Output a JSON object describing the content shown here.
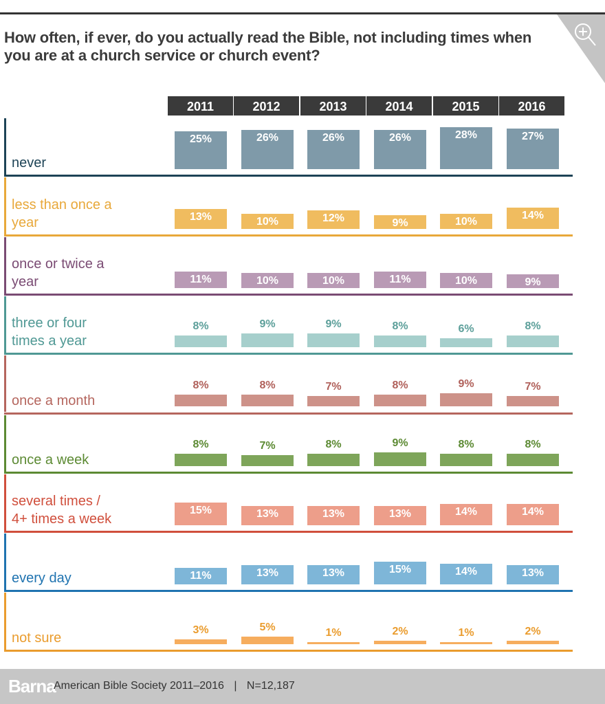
{
  "header": {
    "title": "How often, if ever, do you actually read the Bible, not including times when you are at a church service or church event?",
    "zoom_icon": "zoom-in-magnifier-icon"
  },
  "footer": {
    "brand": "Barna",
    "source": "American Bible Society 2011–2016",
    "separator": "|",
    "sample": "N=12,187"
  },
  "chart_data": {
    "type": "bar",
    "title": "How often, if ever, do you actually read the Bible, not including times when you are at a church service or church event?",
    "categories": [
      "2011",
      "2012",
      "2013",
      "2014",
      "2015",
      "2016"
    ],
    "xlabel": "",
    "ylabel": "",
    "unit": "%",
    "series": [
      {
        "name": "never",
        "label_lines": [
          "never"
        ],
        "values": [
          25,
          26,
          26,
          26,
          28,
          27
        ],
        "line_color": "#1d4356",
        "bar_color": "#7f9aa9",
        "value_color": "#ffffff",
        "value_inside": true
      },
      {
        "name": "less than once a year",
        "label_lines": [
          "less than once a",
          "year"
        ],
        "values": [
          13,
          10,
          12,
          9,
          10,
          14
        ],
        "line_color": "#e8a83a",
        "bar_color": "#f0bc5f",
        "value_color": "#ffffff",
        "value_inside": true
      },
      {
        "name": "once or twice a year",
        "label_lines": [
          "once or twice a",
          "year"
        ],
        "values": [
          11,
          10,
          10,
          11,
          10,
          9
        ],
        "line_color": "#7a4b73",
        "bar_color": "#b99ab5",
        "value_color": "#ffffff",
        "value_inside": true
      },
      {
        "name": "three or four times a year",
        "label_lines": [
          "three or four",
          "times a year"
        ],
        "values": [
          8,
          9,
          9,
          8,
          6,
          8
        ],
        "line_color": "#4f9894",
        "bar_color": "#a6cfcc",
        "value_color": "#5c9f9a",
        "value_inside": false
      },
      {
        "name": "once a month",
        "label_lines": [
          "once a month"
        ],
        "values": [
          8,
          8,
          7,
          8,
          9,
          7
        ],
        "line_color": "#b5665e",
        "bar_color": "#cd9289",
        "value_color": "#b0605a",
        "value_inside": false
      },
      {
        "name": "once a week",
        "label_lines": [
          "once a week"
        ],
        "values": [
          8,
          7,
          8,
          9,
          8,
          8
        ],
        "line_color": "#5c8a33",
        "bar_color": "#7ea55a",
        "value_color": "#5c8a33",
        "value_inside": false
      },
      {
        "name": "several times / 4+ times a week",
        "label_lines": [
          "several times /",
          "4+ times a week"
        ],
        "values": [
          15,
          13,
          13,
          13,
          14,
          14
        ],
        "line_color": "#d04f3c",
        "bar_color": "#ed9e8a",
        "value_color": "#ffffff",
        "value_inside": true
      },
      {
        "name": "every day",
        "label_lines": [
          "every day"
        ],
        "values": [
          11,
          13,
          13,
          15,
          14,
          13
        ],
        "line_color": "#1f73b0",
        "bar_color": "#7eb6d8",
        "value_color": "#ffffff",
        "value_inside": true
      },
      {
        "name": "not sure",
        "label_lines": [
          "not sure"
        ],
        "values": [
          3,
          5,
          1,
          2,
          1,
          2
        ],
        "line_color": "#ea9c2e",
        "bar_color": "#f6ad5e",
        "value_color": "#ea9c2e",
        "value_inside": false
      }
    ],
    "grid": false,
    "legend": "left-labels"
  }
}
